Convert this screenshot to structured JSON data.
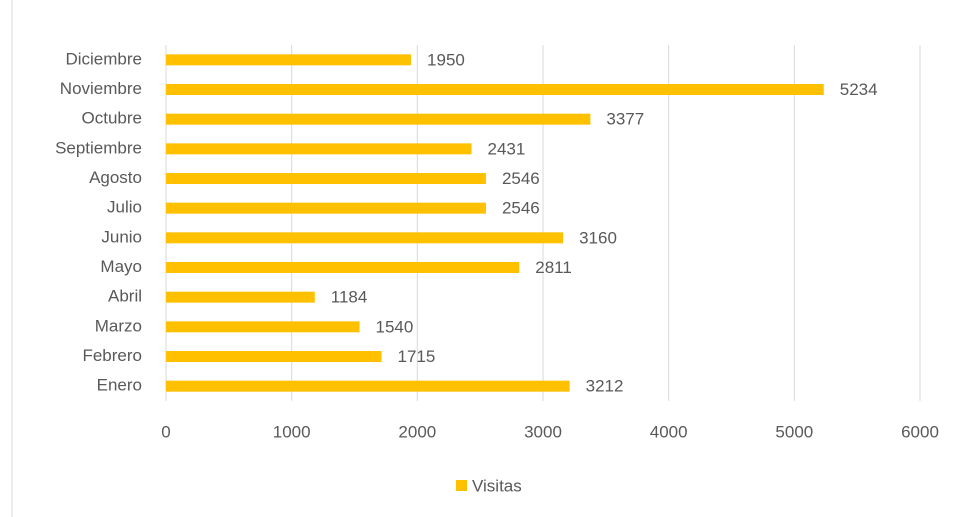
{
  "chart_data": {
    "type": "bar",
    "orientation": "horizontal",
    "categories": [
      "Enero",
      "Febrero",
      "Marzo",
      "Abril",
      "Mayo",
      "Junio",
      "Julio",
      "Agosto",
      "Septiembre",
      "Octubre",
      "Noviembre",
      "Diciembre"
    ],
    "series": [
      {
        "name": "Visitas",
        "color": "#ffc000",
        "values": [
          3212,
          1715,
          1540,
          1184,
          2811,
          3160,
          2546,
          2546,
          2431,
          3377,
          5234,
          1950
        ]
      }
    ],
    "xlim": [
      0,
      6000
    ],
    "xticks": [
      0,
      1000,
      2000,
      3000,
      4000,
      5000,
      6000
    ],
    "grid": true,
    "legend": "bottom"
  }
}
